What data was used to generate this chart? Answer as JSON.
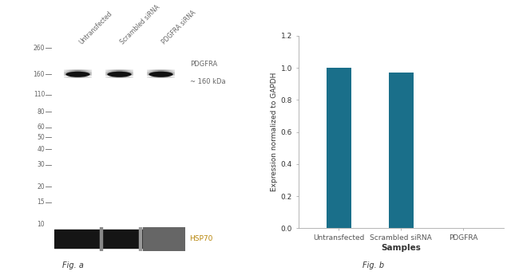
{
  "fig_width": 6.5,
  "fig_height": 3.45,
  "dpi": 100,
  "bar_categories": [
    "Untransfected",
    "Scrambled siRNA",
    "PDGFRA"
  ],
  "bar_values": [
    1.0,
    0.97,
    0.0
  ],
  "bar_color": "#1a6f8a",
  "ylabel": "Expression normalized to GAPDH",
  "xlabel": "Samples",
  "ylim": [
    0,
    1.2
  ],
  "yticks": [
    0,
    0.2,
    0.4,
    0.6,
    0.8,
    1.0,
    1.2
  ],
  "fig_a_label": "Fig. a",
  "fig_b_label": "Fig. b",
  "wb_lane_labels": [
    "Untransfected",
    "Scrambled siRNA",
    "PDGFRA siRNA"
  ],
  "wb_mw_labels": [
    "260",
    "160",
    "110",
    "80",
    "60",
    "50",
    "40",
    "30",
    "20",
    "15",
    "10"
  ],
  "wb_band_label1": "PDGFRA",
  "wb_band_label2": "~ 160 kDa",
  "wb_loading_label": "HSP70",
  "wb_bg_color": "#d4d4d4",
  "wb_band_color": "#111111",
  "wb_loading_bg": "#888888",
  "text_color": "#666666",
  "hsp_text_color": "#b8860b"
}
